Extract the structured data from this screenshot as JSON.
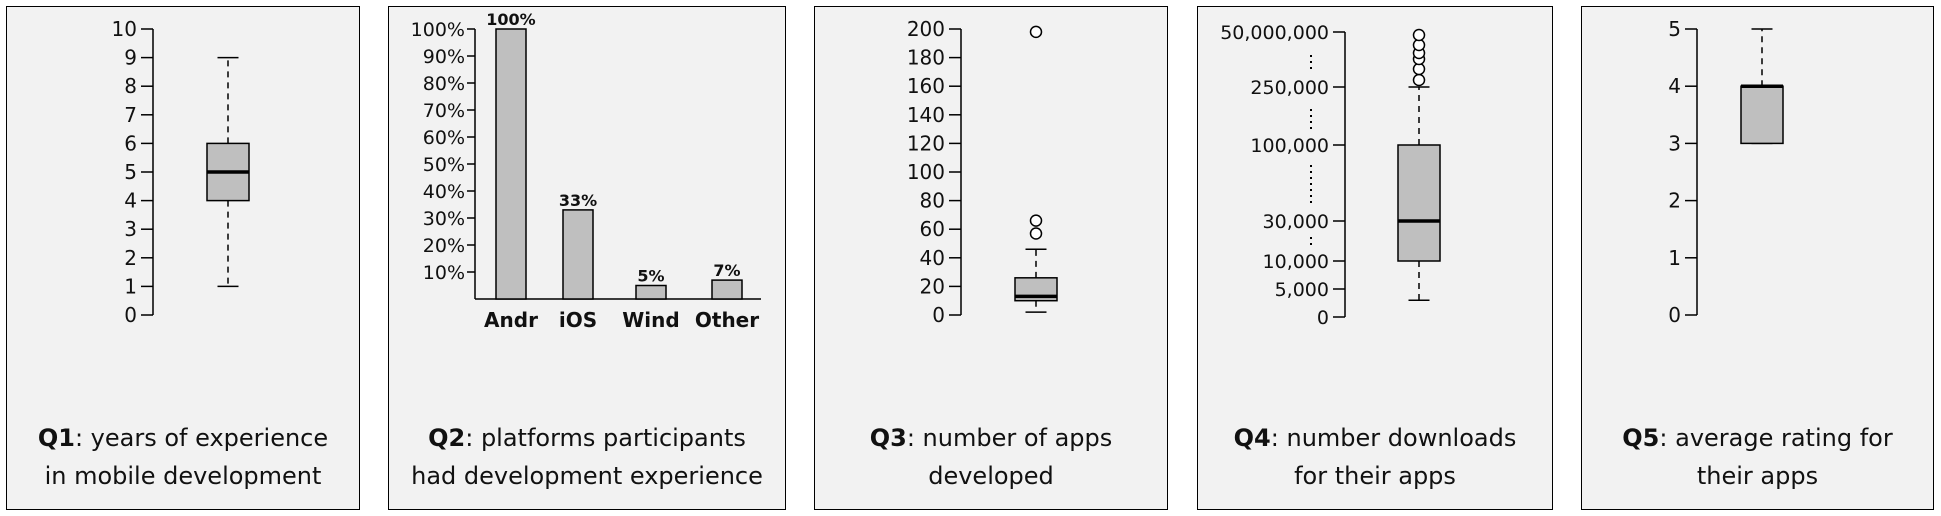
{
  "chart_data": [
    {
      "type": "box",
      "caption_bold": "Q1",
      "caption_lines": [
        ": years of experience",
        "in mobile development"
      ],
      "ylim": [
        0,
        10
      ],
      "yticks": [
        "0",
        "1",
        "2",
        "3",
        "4",
        "5",
        "6",
        "7",
        "8",
        "9",
        "10"
      ],
      "box": {
        "whisker_low": 1,
        "q1": 4,
        "median": 5,
        "q3": 6,
        "whisker_high": 9
      },
      "outliers": []
    },
    {
      "type": "bar",
      "caption_bold": "Q2",
      "caption_lines": [
        ": platforms  participants",
        "had development experience"
      ],
      "ylim": [
        0,
        100
      ],
      "yticks": [
        "10%",
        "20%",
        "30%",
        "40%",
        "50%",
        "60%",
        "70%",
        "80%",
        "90%",
        "100%"
      ],
      "categories": [
        "Andr",
        "iOS",
        "Wind",
        "Other"
      ],
      "values": [
        100,
        33,
        5,
        7
      ],
      "data_labels": [
        "100%",
        "33%",
        "5%",
        "7%"
      ]
    },
    {
      "type": "box",
      "caption_bold": "Q3",
      "caption_lines": [
        ": number of apps",
        "developed"
      ],
      "ylim": [
        0,
        200
      ],
      "yticks": [
        "0",
        "20",
        "40",
        "60",
        "80",
        "100",
        "120",
        "140",
        "160",
        "180",
        "200"
      ],
      "box": {
        "whisker_low": 2,
        "q1": 10,
        "median": 13,
        "q3": 26,
        "whisker_high": 46
      },
      "outliers": [
        57,
        66,
        198
      ]
    },
    {
      "type": "box",
      "scale": "broken",
      "caption_bold": "Q4",
      "caption_lines": [
        ": number downloads",
        "for their apps"
      ],
      "yticks": [
        "0",
        "5,000",
        "10,000",
        "30,000",
        "100,000",
        "250,000",
        "50,000,000"
      ],
      "box": {
        "whisker_low": 3000,
        "q1": 10000,
        "median": 30000,
        "q3": 100000,
        "whisker_high": 250000
      },
      "outliers": [
        500000,
        1000000,
        2500000,
        5000000,
        10000000,
        50000000
      ]
    },
    {
      "type": "box",
      "caption_bold": "Q5",
      "caption_lines": [
        ": average rating for",
        "their apps"
      ],
      "ylim": [
        0,
        5
      ],
      "yticks": [
        "0",
        "1",
        "2",
        "3",
        "4",
        "5"
      ],
      "box": {
        "whisker_low": 3,
        "q1": 3,
        "median": 4,
        "q3": 4,
        "whisker_high": 5
      },
      "outliers": []
    }
  ]
}
